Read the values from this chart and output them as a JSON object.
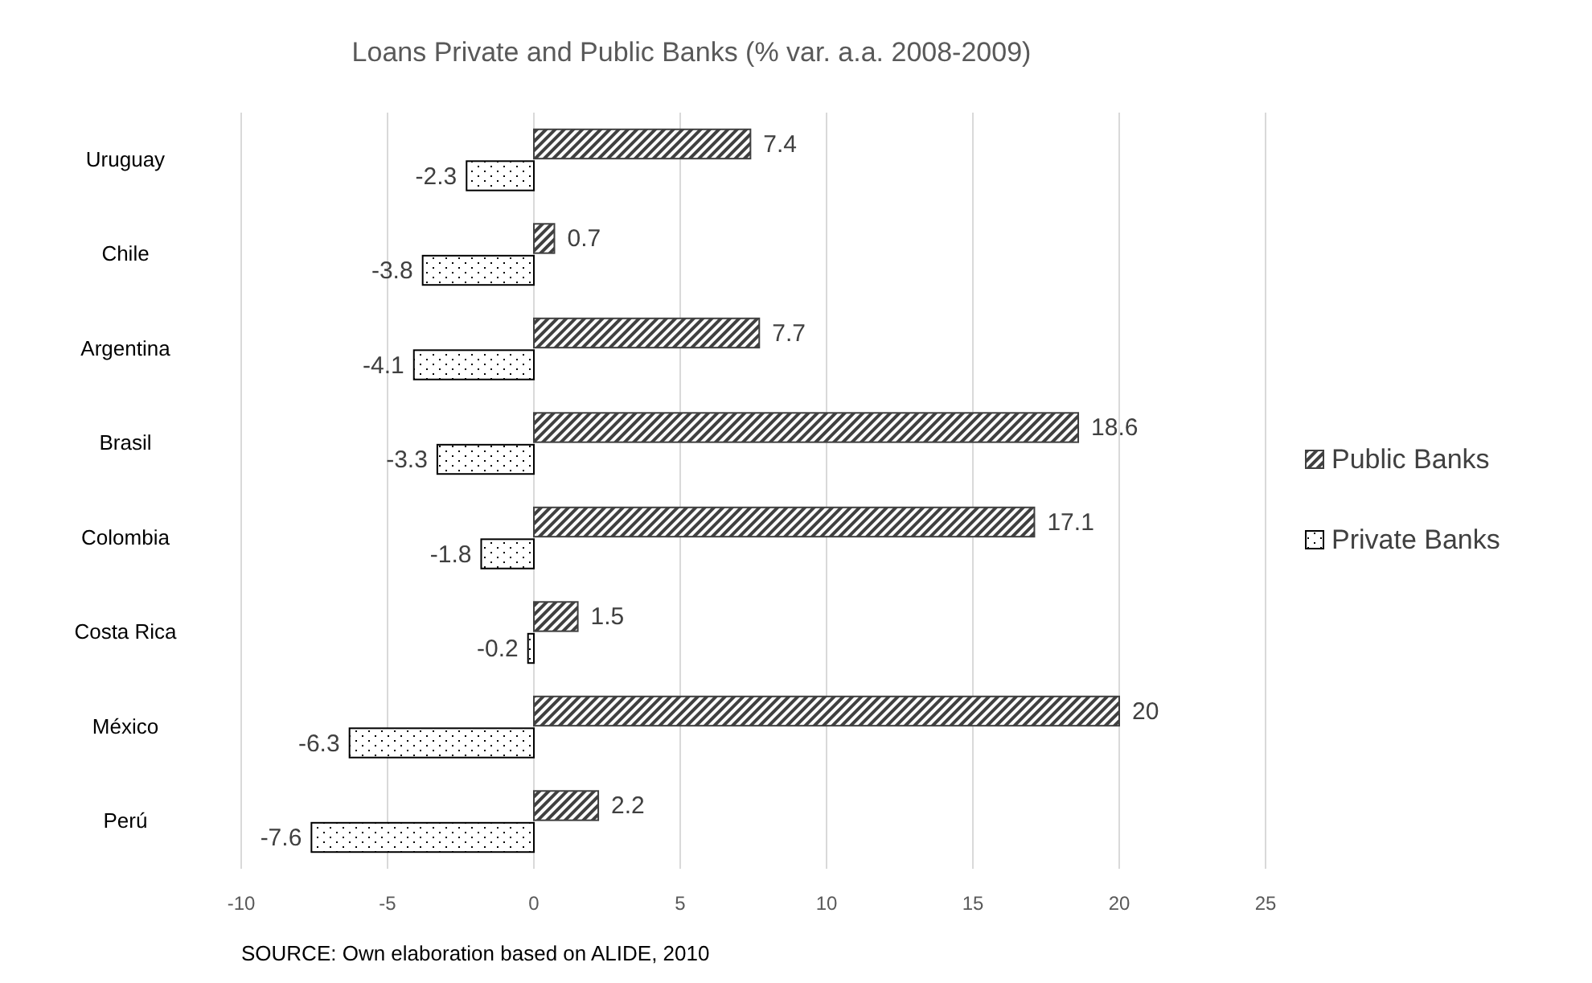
{
  "chart_data": {
    "type": "bar",
    "orientation": "horizontal",
    "title": "Loans Private and Public Banks (% var. a.a. 2008-2009)",
    "categories": [
      "Uruguay",
      "Chile",
      "Argentina",
      "Brasil",
      "Colombia",
      "Costa Rica",
      "México",
      "Perú"
    ],
    "series": [
      {
        "name": "Public Banks",
        "color": "#404040",
        "values": [
          7.4,
          0.7,
          7.7,
          18.6,
          17.1,
          1.5,
          20,
          2.2
        ]
      },
      {
        "name": "Private Banks",
        "color": "#000000",
        "values": [
          -2.3,
          -3.8,
          -4.1,
          -3.3,
          -1.8,
          -0.2,
          -6.3,
          -7.6
        ]
      }
    ],
    "xlim": [
      -10,
      25
    ],
    "xticks": [
      -10,
      -5,
      0,
      5,
      10,
      15,
      20,
      25
    ],
    "grid": "x",
    "legend": "right",
    "data_labels": true,
    "annotations": [
      "SOURCE: Own elaboration based on ALIDE, 2010"
    ]
  }
}
